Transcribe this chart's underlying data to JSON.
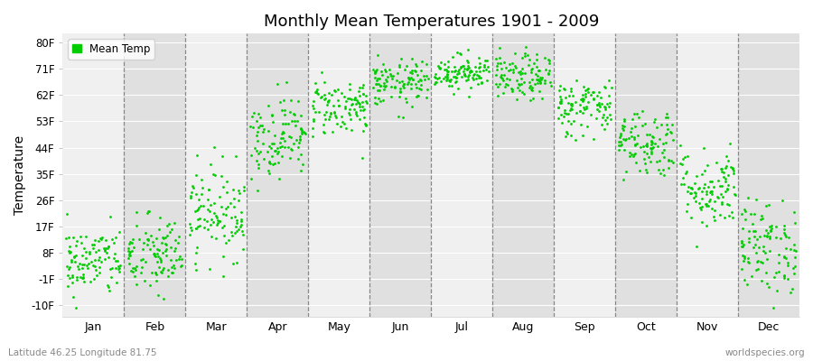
{
  "title": "Monthly Mean Temperatures 1901 - 2009",
  "ylabel": "Temperature",
  "bottom_left_label": "Latitude 46.25 Longitude 81.75",
  "bottom_right_label": "worldspecies.org",
  "dot_color": "#00cc00",
  "background_color": "#ffffff",
  "plot_bg_color": "#f0f0f0",
  "stripe_light": "#f0f0f0",
  "stripe_dark": "#e0e0e0",
  "ytick_labels": [
    "-10F",
    "-1F",
    "8F",
    "17F",
    "26F",
    "35F",
    "44F",
    "53F",
    "62F",
    "71F",
    "80F"
  ],
  "ytick_values": [
    -10,
    -1,
    8,
    17,
    26,
    35,
    44,
    53,
    62,
    71,
    80
  ],
  "months": [
    "Jan",
    "Feb",
    "Mar",
    "Apr",
    "May",
    "Jun",
    "Jul",
    "Aug",
    "Sep",
    "Oct",
    "Nov",
    "Dec"
  ],
  "month_mean_temps_F": [
    5,
    7,
    22,
    48,
    58,
    66,
    70,
    68,
    58,
    46,
    30,
    10
  ],
  "month_std_F": [
    6,
    7,
    8,
    7,
    5,
    4,
    3,
    4,
    5,
    6,
    7,
    8
  ],
  "n_years": 109,
  "legend_label": "Mean Temp",
  "dot_size": 4,
  "ylim_min": -14,
  "ylim_max": 83
}
